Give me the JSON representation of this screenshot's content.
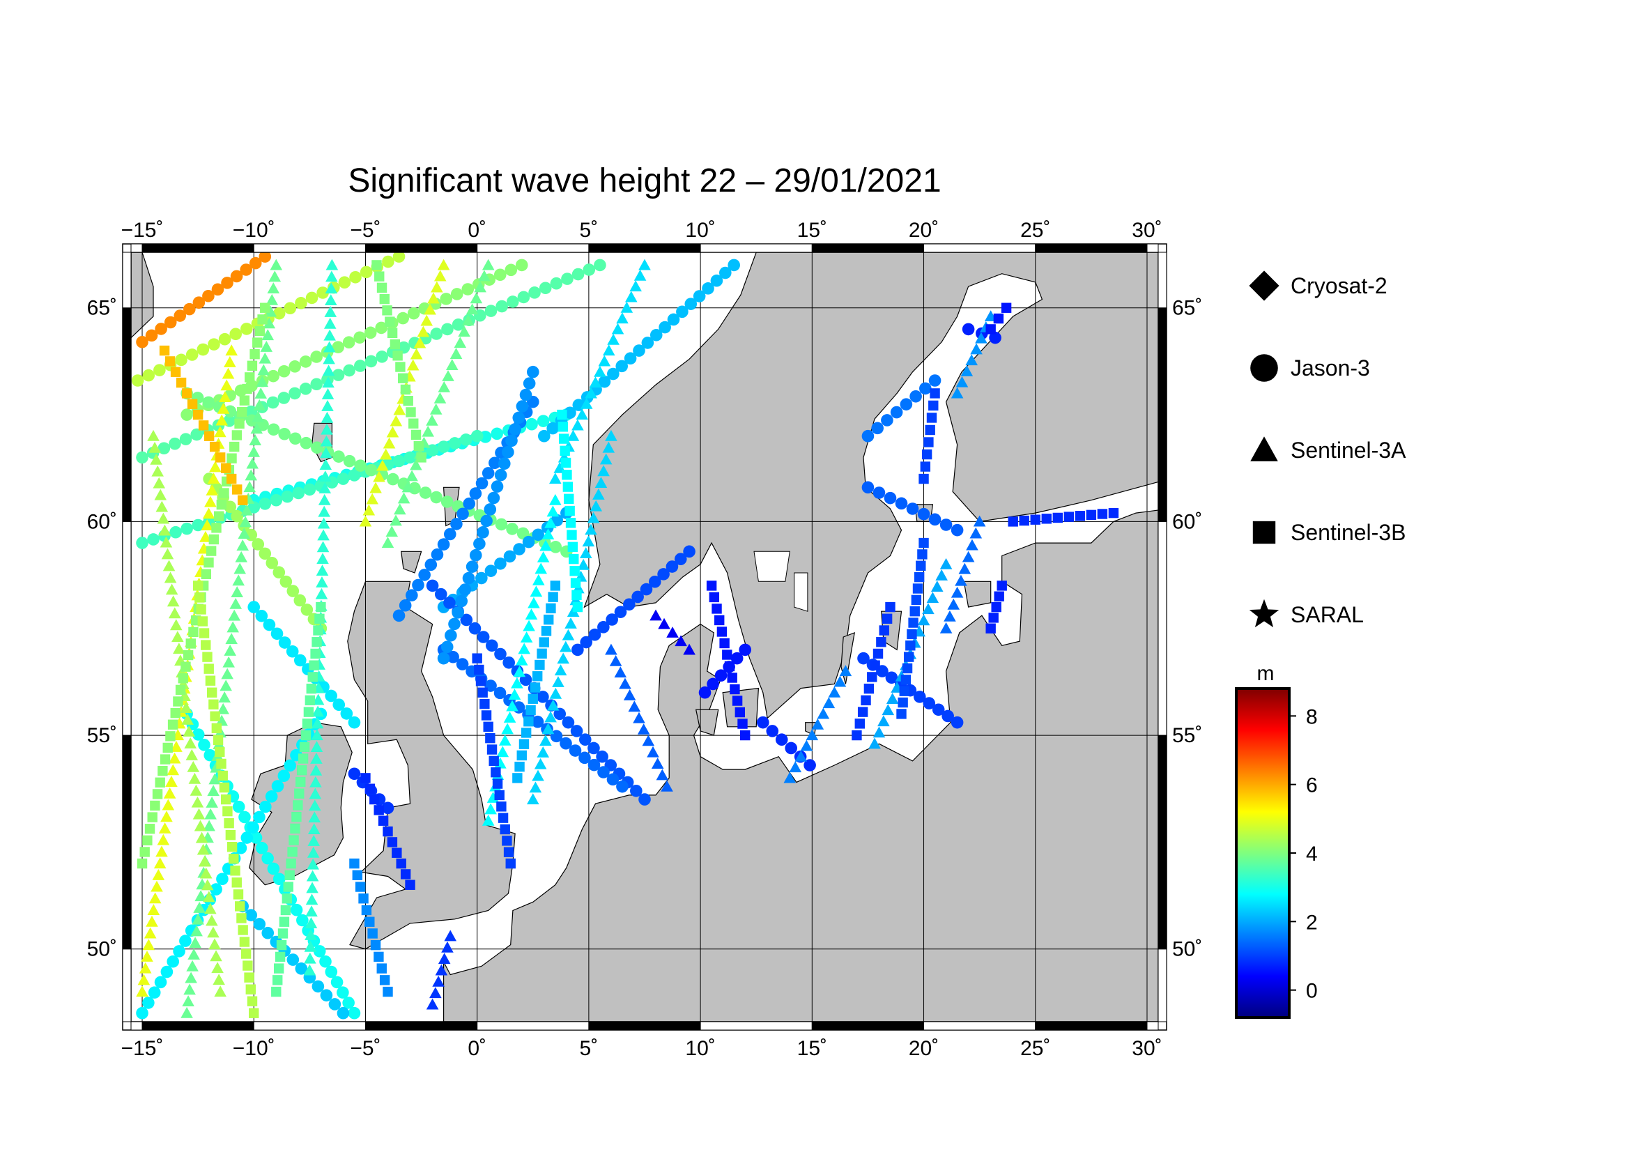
{
  "title": "Significant wave height 22 – 29/01/2021",
  "map": {
    "lon_range": [
      -15.5,
      30.5
    ],
    "lat_range": [
      48.3,
      66.3
    ],
    "lon_ticks": [
      -15,
      -10,
      -5,
      0,
      5,
      10,
      15,
      20,
      25,
      30
    ],
    "lat_ticks": [
      50,
      55,
      60,
      65
    ],
    "lon_tick_labels": [
      "−15˚",
      "−10˚",
      "−5˚",
      "0˚",
      "5˚",
      "10˚",
      "15˚",
      "20˚",
      "25˚",
      "30˚"
    ],
    "lat_tick_labels": [
      "50˚",
      "55˚",
      "60˚",
      "65˚"
    ],
    "grid": true,
    "land_color": "#c0c0c0",
    "sea_color": "#ffffff"
  },
  "legend": {
    "placement": "right",
    "items": [
      {
        "label": "Cryosat-2",
        "icon": "diamond-icon"
      },
      {
        "label": "Jason-3",
        "icon": "circle-icon"
      },
      {
        "label": "Sentinel-3A",
        "icon": "triangle-icon"
      },
      {
        "label": "Sentinel-3B",
        "icon": "square-icon"
      },
      {
        "label": "SARAL",
        "icon": "star-icon"
      }
    ]
  },
  "colorbar": {
    "unit": "m",
    "range": [
      -0.8,
      8.8
    ],
    "ticks": [
      0,
      2,
      4,
      6,
      8
    ],
    "tick_labels": [
      "0",
      "2",
      "4",
      "6",
      "8"
    ],
    "colormap": [
      "#00007f",
      "#0000ff",
      "#007fff",
      "#00ffff",
      "#7fff7f",
      "#ffff00",
      "#ff7f00",
      "#ff0000",
      "#7f0000"
    ]
  },
  "chart_data": {
    "type": "scatter",
    "title": "Significant wave height 22 – 29/01/2021",
    "xlabel": "",
    "ylabel": "",
    "value_unit": "m",
    "tracks": [
      {
        "satellite": "Jason-3",
        "from": [
          -15.0,
          64.2
        ],
        "to": [
          -9.5,
          66.2
        ],
        "swh": 6.3
      },
      {
        "satellite": "Jason-3",
        "from": [
          -15.2,
          63.3
        ],
        "to": [
          -3.5,
          66.2
        ],
        "swh": 4.6
      },
      {
        "satellite": "Jason-3",
        "from": [
          -13.0,
          62.5
        ],
        "to": [
          2.0,
          66.0
        ],
        "swh": 4.1
      },
      {
        "satellite": "Jason-3",
        "from": [
          -15.0,
          61.5
        ],
        "to": [
          5.5,
          66.0
        ],
        "swh": 3.6
      },
      {
        "satellite": "Jason-3",
        "from": [
          -10.0,
          60.5
        ],
        "to": [
          4.0,
          62.5
        ],
        "swh": 3.0
      },
      {
        "satellite": "Jason-3",
        "from": [
          -15.0,
          59.5
        ],
        "to": [
          0.0,
          62.0
        ],
        "swh": 3.4
      },
      {
        "satellite": "Jason-3",
        "from": [
          -13.0,
          63.0
        ],
        "to": [
          4.0,
          59.3
        ],
        "swh": 3.9
      },
      {
        "satellite": "Jason-3",
        "from": [
          -12.0,
          61.0
        ],
        "to": [
          -7.0,
          57.5
        ],
        "swh": 4.3
      },
      {
        "satellite": "Jason-3",
        "from": [
          -10.0,
          58.0
        ],
        "to": [
          -5.5,
          55.3
        ],
        "swh": 2.6
      },
      {
        "satellite": "Jason-3",
        "from": [
          -13.0,
          55.5
        ],
        "to": [
          -5.5,
          48.5
        ],
        "swh": 2.9
      },
      {
        "satellite": "Jason-3",
        "from": [
          -15.0,
          48.5
        ],
        "to": [
          -7.0,
          55.5
        ],
        "swh": 2.7
      },
      {
        "satellite": "Jason-3",
        "from": [
          -10.5,
          51.0
        ],
        "to": [
          -6.0,
          48.5
        ],
        "swh": 2.3
      },
      {
        "satellite": "Jason-3",
        "from": [
          -3.5,
          57.8
        ],
        "to": [
          2.5,
          62.8
        ],
        "swh": 1.6
      },
      {
        "satellite": "Jason-3",
        "from": [
          -1.5,
          58.0
        ],
        "to": [
          4.0,
          60.2
        ],
        "swh": 2.0
      },
      {
        "satellite": "Jason-3",
        "from": [
          -2.0,
          58.5
        ],
        "to": [
          7.5,
          53.5
        ],
        "swh": 1.2
      },
      {
        "satellite": "Jason-3",
        "from": [
          -1.5,
          57.0
        ],
        "to": [
          6.5,
          53.8
        ],
        "swh": 1.4
      },
      {
        "satellite": "Jason-3",
        "from": [
          -1.5,
          56.8
        ],
        "to": [
          2.5,
          63.5
        ],
        "swh": 1.8
      },
      {
        "satellite": "Jason-3",
        "from": [
          3.0,
          62.0
        ],
        "to": [
          11.5,
          66.0
        ],
        "swh": 2.2
      },
      {
        "satellite": "Jason-3",
        "from": [
          4.5,
          57.0
        ],
        "to": [
          9.5,
          59.3
        ],
        "swh": 1.1
      },
      {
        "satellite": "Jason-3",
        "from": [
          10.2,
          56.0
        ],
        "to": [
          12.0,
          57.0
        ],
        "swh": 0.6
      },
      {
        "satellite": "Jason-3",
        "from": [
          12.8,
          55.3
        ],
        "to": [
          14.9,
          54.3
        ],
        "swh": 0.8
      },
      {
        "satellite": "Jason-3",
        "from": [
          17.3,
          56.8
        ],
        "to": [
          21.5,
          55.3
        ],
        "swh": 1.0
      },
      {
        "satellite": "Jason-3",
        "from": [
          17.5,
          60.8
        ],
        "to": [
          21.5,
          59.8
        ],
        "swh": 1.3
      },
      {
        "satellite": "Jason-3",
        "from": [
          17.5,
          62.0
        ],
        "to": [
          20.5,
          63.3
        ],
        "swh": 1.5
      },
      {
        "satellite": "Jason-3",
        "from": [
          22.0,
          64.5
        ],
        "to": [
          23.2,
          64.3
        ],
        "swh": 0.7
      },
      {
        "satellite": "Jason-3",
        "from": [
          -5.5,
          54.1
        ],
        "to": [
          -4.0,
          53.3
        ],
        "swh": 0.9
      },
      {
        "satellite": "Sentinel-3A",
        "from": [
          -15.0,
          49.0
        ],
        "to": [
          -11.0,
          64.0
        ],
        "swh": 5.0
      },
      {
        "satellite": "Sentinel-3A",
        "from": [
          -13.0,
          48.5
        ],
        "to": [
          -9.0,
          66.0
        ],
        "swh": 3.8
      },
      {
        "satellite": "Sentinel-3A",
        "from": [
          -11.5,
          49.0
        ],
        "to": [
          -14.5,
          62.0
        ],
        "swh": 4.4
      },
      {
        "satellite": "Sentinel-3A",
        "from": [
          -7.5,
          49.5
        ],
        "to": [
          -6.5,
          66.0
        ],
        "swh": 3.2
      },
      {
        "satellite": "Sentinel-3A",
        "from": [
          -5.0,
          60.0
        ],
        "to": [
          -1.5,
          66.0
        ],
        "swh": 4.9
      },
      {
        "satellite": "Sentinel-3A",
        "from": [
          -4.0,
          59.5
        ],
        "to": [
          0.5,
          66.0
        ],
        "swh": 3.8
      },
      {
        "satellite": "Sentinel-3A",
        "from": [
          0.5,
          53.0
        ],
        "to": [
          3.5,
          60.5
        ],
        "swh": 2.8
      },
      {
        "satellite": "Sentinel-3A",
        "from": [
          2.5,
          53.5
        ],
        "to": [
          6.0,
          62.0
        ],
        "swh": 2.4
      },
      {
        "satellite": "Sentinel-3A",
        "from": [
          3.5,
          61.0
        ],
        "to": [
          7.5,
          66.0
        ],
        "swh": 2.5
      },
      {
        "satellite": "Sentinel-3A",
        "from": [
          6.0,
          57.0
        ],
        "to": [
          8.5,
          53.8
        ],
        "swh": 1.3
      },
      {
        "satellite": "Sentinel-3A",
        "from": [
          8.0,
          57.8
        ],
        "to": [
          9.5,
          57.0
        ],
        "swh": 0.3
      },
      {
        "satellite": "Sentinel-3A",
        "from": [
          14.0,
          54.0
        ],
        "to": [
          16.5,
          56.5
        ],
        "swh": 1.6
      },
      {
        "satellite": "Sentinel-3A",
        "from": [
          17.8,
          54.8
        ],
        "to": [
          21.0,
          59.0
        ],
        "swh": 2.0
      },
      {
        "satellite": "Sentinel-3A",
        "from": [
          21.0,
          57.5
        ],
        "to": [
          22.5,
          60.0
        ],
        "swh": 1.4
      },
      {
        "satellite": "Sentinel-3A",
        "from": [
          21.5,
          63.0
        ],
        "to": [
          23.0,
          64.8
        ],
        "swh": 1.8
      },
      {
        "satellite": "Sentinel-3A",
        "from": [
          -2.0,
          48.7
        ],
        "to": [
          -1.2,
          50.3
        ],
        "swh": 0.9
      },
      {
        "satellite": "Sentinel-3B",
        "from": [
          -15.0,
          52.0
        ],
        "to": [
          -9.5,
          65.0
        ],
        "swh": 4.1
      },
      {
        "satellite": "Sentinel-3B",
        "from": [
          -14.0,
          64.0
        ],
        "to": [
          -10.5,
          60.5
        ],
        "swh": 5.8
      },
      {
        "satellite": "Sentinel-3B",
        "from": [
          -10.0,
          48.5
        ],
        "to": [
          -12.5,
          58.5
        ],
        "swh": 4.5
      },
      {
        "satellite": "Sentinel-3B",
        "from": [
          -9.0,
          49.0
        ],
        "to": [
          -7.0,
          58.0
        ],
        "swh": 3.7
      },
      {
        "satellite": "Sentinel-3B",
        "from": [
          -2.5,
          61.5
        ],
        "to": [
          -4.5,
          66.0
        ],
        "swh": 4.0
      },
      {
        "satellite": "Sentinel-3B",
        "from": [
          -5.0,
          54.0
        ],
        "to": [
          -3.0,
          51.5
        ],
        "swh": 0.8
      },
      {
        "satellite": "Sentinel-3B",
        "from": [
          -5.5,
          52.0
        ],
        "to": [
          -4.0,
          49.0
        ],
        "swh": 1.7
      },
      {
        "satellite": "Sentinel-3B",
        "from": [
          1.5,
          52.0
        ],
        "to": [
          0.0,
          56.8
        ],
        "swh": 1.0
      },
      {
        "satellite": "Sentinel-3B",
        "from": [
          1.8,
          54.0
        ],
        "to": [
          3.5,
          58.5
        ],
        "swh": 2.1
      },
      {
        "satellite": "Sentinel-3B",
        "from": [
          4.5,
          58.0
        ],
        "to": [
          3.8,
          62.5
        ],
        "swh": 2.8
      },
      {
        "satellite": "Sentinel-3B",
        "from": [
          10.5,
          58.5
        ],
        "to": [
          12.0,
          55.0
        ],
        "swh": 0.6
      },
      {
        "satellite": "Sentinel-3B",
        "from": [
          17.0,
          55.0
        ],
        "to": [
          18.5,
          58.0
        ],
        "swh": 0.9
      },
      {
        "satellite": "Sentinel-3B",
        "from": [
          19.0,
          55.5
        ],
        "to": [
          20.0,
          59.5
        ],
        "swh": 1.1
      },
      {
        "satellite": "Sentinel-3B",
        "from": [
          20.0,
          61.0
        ],
        "to": [
          20.5,
          63.0
        ],
        "swh": 1.0
      },
      {
        "satellite": "Sentinel-3B",
        "from": [
          23.0,
          57.5
        ],
        "to": [
          23.5,
          58.5
        ],
        "swh": 0.7
      },
      {
        "satellite": "Sentinel-3B",
        "from": [
          23.0,
          64.5
        ],
        "to": [
          23.7,
          65.0
        ],
        "swh": 0.6
      },
      {
        "satellite": "Sentinel-3B",
        "from": [
          24.0,
          60.0
        ],
        "to": [
          28.5,
          60.2
        ],
        "swh": 0.8
      }
    ]
  }
}
